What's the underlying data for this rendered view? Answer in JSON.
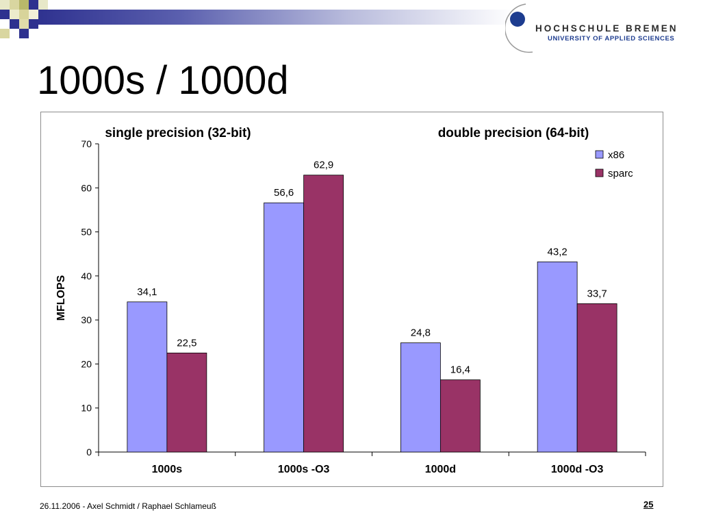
{
  "slide": {
    "title": "1000s / 1000d",
    "footer": "26.11.2006 - Axel Schmidt / Raphael Schlameuß",
    "page_number": "25"
  },
  "logo": {
    "name": "HOCHSCHULE BREMEN",
    "subtitle": "UNIVERSITY OF APPLIED SCIENCES"
  },
  "colors": {
    "x86": "#9999ff",
    "sparc": "#993366",
    "header_bar": "#2e318f",
    "logo_circle": "#1d3c8f"
  },
  "chart_data": {
    "type": "bar",
    "group_titles": [
      "single precision (32-bit)",
      "double precision (64-bit)"
    ],
    "categories": [
      "1000s",
      "1000s -O3",
      "1000d",
      "1000d -O3"
    ],
    "series": [
      {
        "name": "x86",
        "values": [
          34.1,
          56.6,
          24.8,
          43.2
        ],
        "labels": [
          "34,1",
          "56,6",
          "24,8",
          "43,2"
        ]
      },
      {
        "name": "sparc",
        "values": [
          22.5,
          62.9,
          16.4,
          33.7
        ],
        "labels": [
          "22,5",
          "62,9",
          "16,4",
          "33,7"
        ]
      }
    ],
    "ylabel": "MFLOPS",
    "xlabel": "",
    "ylim": [
      0,
      70
    ],
    "yticks": [
      0,
      10,
      20,
      30,
      40,
      50,
      60,
      70
    ],
    "grid": false,
    "legend_position": "top-right"
  }
}
